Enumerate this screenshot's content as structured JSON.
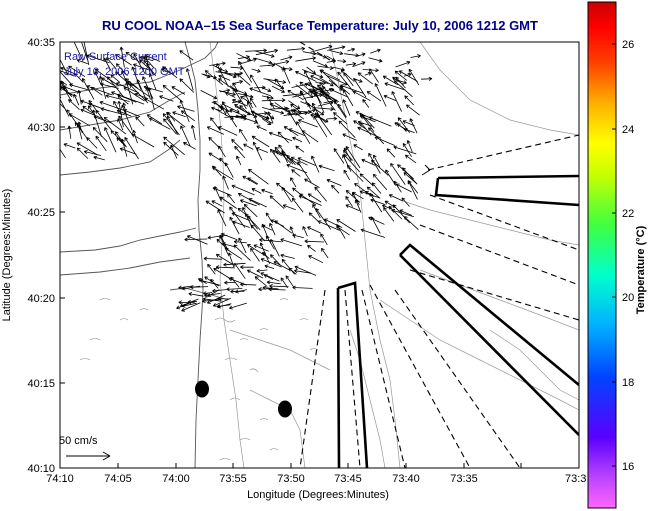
{
  "title": "RU COOL  NOAA–15  Sea Surface Temperature:  July 10, 2006 1212 GMT",
  "legend": {
    "line1": "Raw Surface Current",
    "line2": "July 10, 2006 1200 GMT"
  },
  "scale_label": "50 cm/s",
  "xlabel": "Longitude (Degrees:Minutes)",
  "ylabel": "Latitude (Degrees:Minutes)",
  "colorbar_label": "Temperature (°C)",
  "x_ticks": [
    "74:10",
    "74:05",
    "74:00",
    "73:55",
    "73:50",
    "73:45",
    "73:40",
    "73:35",
    "73:3"
  ],
  "y_ticks": [
    "40:35",
    "40:30",
    "40:25",
    "40:20",
    "40:15",
    "40:10"
  ],
  "colorbar_ticks": [
    "26",
    "24",
    "22",
    "20",
    "18",
    "16"
  ],
  "colors": {
    "title": "#00008b",
    "legend_text": "#1a1aa0",
    "coast": "#555555",
    "bathymetry": "#888888"
  }
}
